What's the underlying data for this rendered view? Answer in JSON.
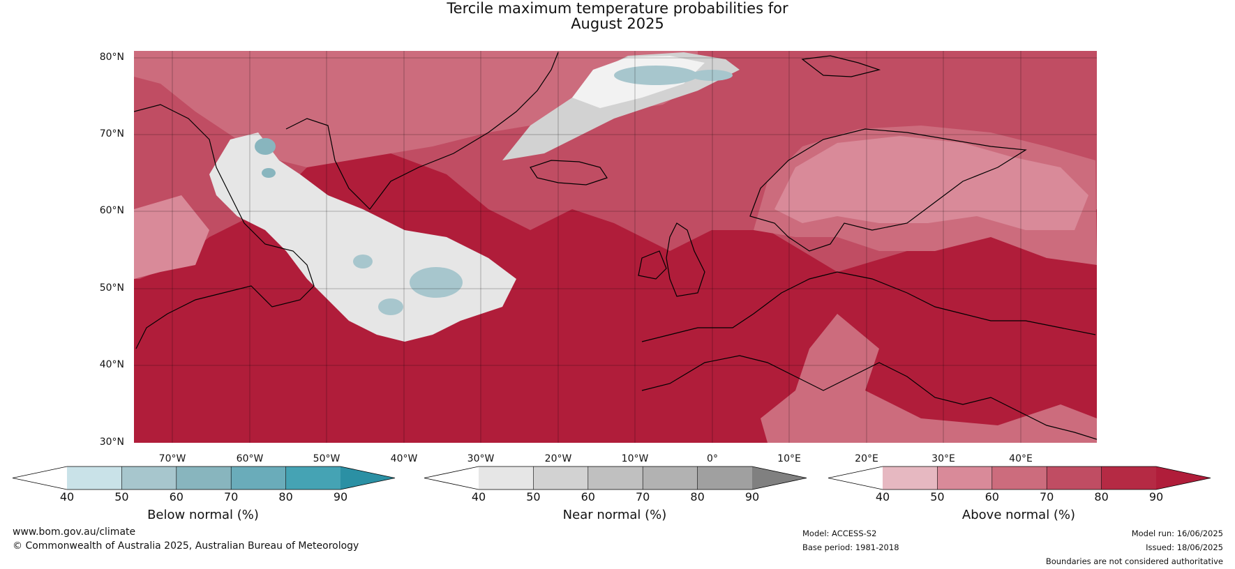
{
  "title": {
    "line1": "Tercile maximum temperature probabilities for",
    "line2": "August 2025"
  },
  "map": {
    "lat_labels": [
      "80°N",
      "70°N",
      "60°N",
      "50°N",
      "40°N",
      "30°N"
    ],
    "lon_labels": [
      "70°W",
      "60°W",
      "50°W",
      "40°W",
      "30°W",
      "20°W",
      "10°W",
      "0°",
      "10°E",
      "20°E",
      "30°E",
      "40°E"
    ],
    "colors": {
      "above": [
        "#e6b8c1",
        "#d98a99",
        "#cc6c7d",
        "#c04d63",
        "#b52a44",
        "#b01d3a"
      ],
      "near": [
        "#ffffff",
        "#e6e6e6",
        "#d2d2d2",
        "#bebebe",
        "#a8a8a8",
        "#8c8c8c"
      ],
      "below": [
        "#ffffff",
        "#c9e2e8",
        "#a7c6cd",
        "#88b5be",
        "#6aacba",
        "#45a3b4"
      ]
    }
  },
  "colorbars": [
    {
      "title": "Below normal (%)",
      "ticks": [
        "40",
        "50",
        "60",
        "70",
        "80",
        "90"
      ],
      "colors": [
        "#ffffff",
        "#c9e2e8",
        "#a7c6cd",
        "#88b5be",
        "#6aacba",
        "#45a3b4",
        "#2b90a4"
      ]
    },
    {
      "title": "Near normal (%)",
      "ticks": [
        "40",
        "50",
        "60",
        "70",
        "80",
        "90"
      ],
      "colors": [
        "#ffffff",
        "#e6e6e6",
        "#d2d2d2",
        "#c0c0c0",
        "#b2b2b2",
        "#a0a0a0",
        "#808080"
      ]
    },
    {
      "title": "Above normal (%)",
      "ticks": [
        "40",
        "50",
        "60",
        "70",
        "80",
        "90"
      ],
      "colors": [
        "#ffffff",
        "#e6b8c1",
        "#d98a99",
        "#cc6c7d",
        "#c04d63",
        "#b52a44",
        "#b01d3a"
      ]
    }
  ],
  "footer": {
    "website": "www.bom.gov.au/climate",
    "copyright": "© Commonwealth of Australia 2025, Australian Bureau of Meteorology",
    "model": "Model: ACCESS-S2",
    "base_period": "Base period: 1981-2018",
    "model_run": "Model run: 16/06/2025",
    "issued": "Issued: 18/06/2025",
    "disclaimer": "Boundaries are not considered authoritative"
  }
}
